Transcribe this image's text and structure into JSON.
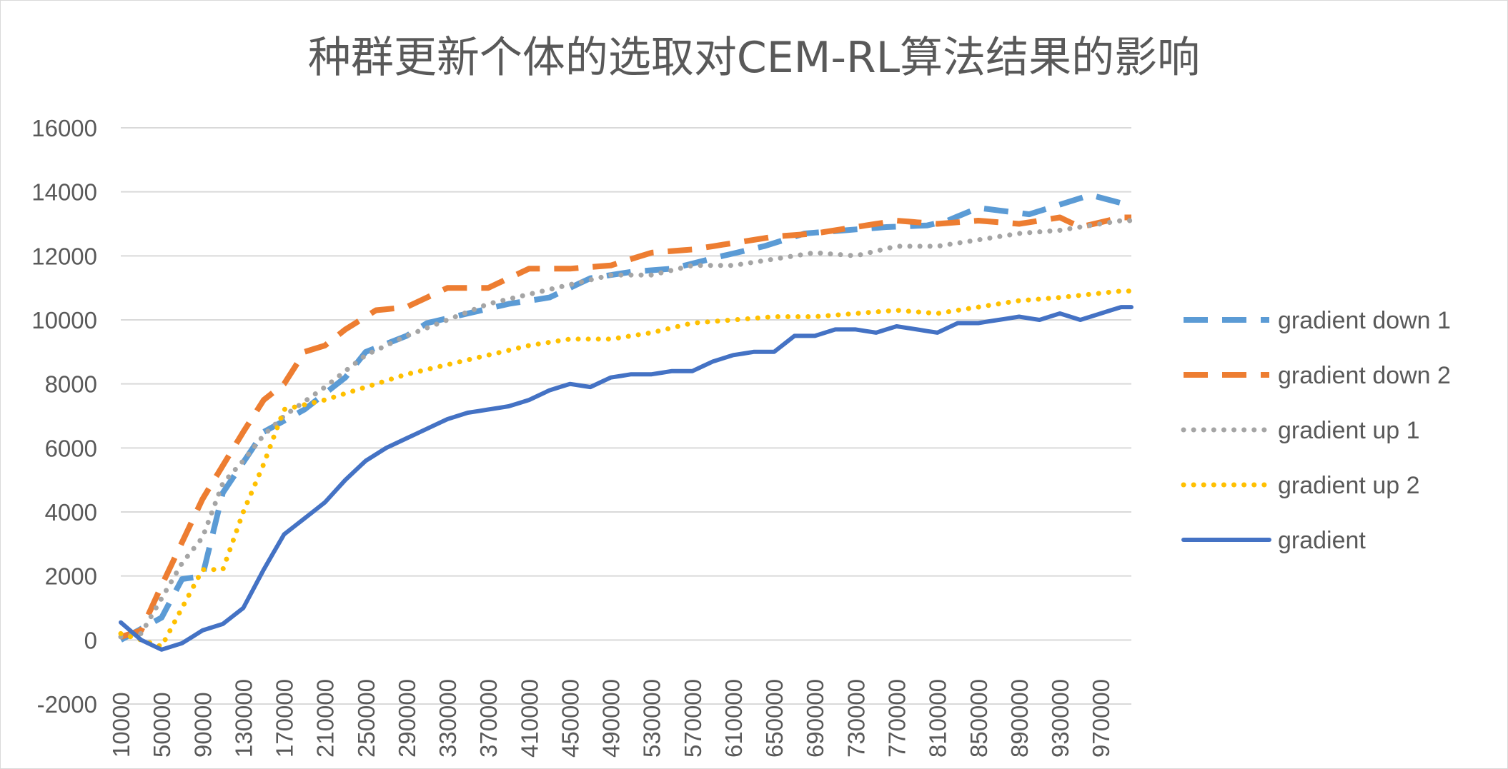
{
  "chart_data": {
    "type": "line",
    "title": "种群更新个体的选取对CEM-RL算法结果的影响",
    "xlabel": "",
    "ylabel": "",
    "ylim": [
      -2000,
      16000
    ],
    "y_ticks": [
      "-2000",
      "0",
      "2000",
      "4000",
      "6000",
      "8000",
      "10000",
      "12000",
      "14000",
      "16000"
    ],
    "x_ticks": [
      "10000",
      "50000",
      "90000",
      "130000",
      "170000",
      "210000",
      "250000",
      "290000",
      "330000",
      "370000",
      "410000",
      "450000",
      "490000",
      "530000",
      "570000",
      "610000",
      "650000",
      "690000",
      "730000",
      "770000",
      "810000",
      "850000",
      "890000",
      "930000",
      "970000"
    ],
    "x_start": 10000,
    "x_step": 10000,
    "grid": true,
    "legend_position": "right",
    "series": [
      {
        "name": "gradient down 1",
        "color": "#5b9bd5",
        "style": "longdash",
        "anchors": [
          [
            10000,
            0
          ],
          [
            50000,
            700
          ],
          [
            70000,
            1900
          ],
          [
            90000,
            2000
          ],
          [
            110000,
            4600
          ],
          [
            150000,
            6500
          ],
          [
            190000,
            7200
          ],
          [
            230000,
            8200
          ],
          [
            250000,
            9000
          ],
          [
            290000,
            9500
          ],
          [
            310000,
            9900
          ],
          [
            350000,
            10200
          ],
          [
            390000,
            10500
          ],
          [
            430000,
            10700
          ],
          [
            470000,
            11300
          ],
          [
            510000,
            11500
          ],
          [
            550000,
            11600
          ],
          [
            600000,
            12000
          ],
          [
            640000,
            12300
          ],
          [
            680000,
            12700
          ],
          [
            720000,
            12800
          ],
          [
            760000,
            12900
          ],
          [
            800000,
            12950
          ],
          [
            820000,
            13100
          ],
          [
            850000,
            13500
          ],
          [
            900000,
            13300
          ],
          [
            940000,
            13700
          ],
          [
            960000,
            13900
          ],
          [
            990000,
            13650
          ]
        ]
      },
      {
        "name": "gradient down 2",
        "color": "#ed7d31",
        "style": "longdash",
        "anchors": [
          [
            10000,
            100
          ],
          [
            30000,
            300
          ],
          [
            50000,
            1700
          ],
          [
            90000,
            4400
          ],
          [
            130000,
            6500
          ],
          [
            150000,
            7500
          ],
          [
            170000,
            8000
          ],
          [
            190000,
            9000
          ],
          [
            210000,
            9200
          ],
          [
            230000,
            9700
          ],
          [
            260000,
            10300
          ],
          [
            290000,
            10400
          ],
          [
            330000,
            11000
          ],
          [
            370000,
            11000
          ],
          [
            410000,
            11600
          ],
          [
            450000,
            11600
          ],
          [
            490000,
            11700
          ],
          [
            530000,
            12100
          ],
          [
            570000,
            12200
          ],
          [
            610000,
            12400
          ],
          [
            650000,
            12600
          ],
          [
            690000,
            12700
          ],
          [
            730000,
            12900
          ],
          [
            770000,
            13100
          ],
          [
            810000,
            13000
          ],
          [
            850000,
            13100
          ],
          [
            890000,
            13000
          ],
          [
            930000,
            13200
          ],
          [
            950000,
            12900
          ],
          [
            990000,
            13200
          ]
        ]
      },
      {
        "name": "gradient up 1",
        "color": "#a5a5a5",
        "style": "dotted",
        "anchors": [
          [
            10000,
            100
          ],
          [
            30000,
            200
          ],
          [
            50000,
            1300
          ],
          [
            70000,
            2400
          ],
          [
            90000,
            3200
          ],
          [
            110000,
            4900
          ],
          [
            130000,
            5600
          ],
          [
            150000,
            6400
          ],
          [
            170000,
            7000
          ],
          [
            210000,
            7900
          ],
          [
            250000,
            8900
          ],
          [
            290000,
            9500
          ],
          [
            330000,
            10000
          ],
          [
            370000,
            10500
          ],
          [
            410000,
            10800
          ],
          [
            450000,
            11100
          ],
          [
            490000,
            11400
          ],
          [
            530000,
            11400
          ],
          [
            570000,
            11700
          ],
          [
            610000,
            11700
          ],
          [
            650000,
            11900
          ],
          [
            690000,
            12100
          ],
          [
            730000,
            12000
          ],
          [
            770000,
            12300
          ],
          [
            810000,
            12300
          ],
          [
            850000,
            12500
          ],
          [
            890000,
            12700
          ],
          [
            930000,
            12800
          ],
          [
            990000,
            13100
          ]
        ]
      },
      {
        "name": "gradient up 2",
        "color": "#ffc000",
        "style": "dotted",
        "anchors": [
          [
            10000,
            200
          ],
          [
            30000,
            0
          ],
          [
            50000,
            -200
          ],
          [
            70000,
            1000
          ],
          [
            90000,
            2200
          ],
          [
            110000,
            2200
          ],
          [
            130000,
            4000
          ],
          [
            150000,
            5500
          ],
          [
            170000,
            7200
          ],
          [
            210000,
            7500
          ],
          [
            250000,
            7900
          ],
          [
            290000,
            8300
          ],
          [
            330000,
            8600
          ],
          [
            370000,
            8900
          ],
          [
            410000,
            9200
          ],
          [
            450000,
            9400
          ],
          [
            490000,
            9400
          ],
          [
            530000,
            9600
          ],
          [
            570000,
            9900
          ],
          [
            610000,
            10000
          ],
          [
            650000,
            10100
          ],
          [
            690000,
            10100
          ],
          [
            730000,
            10200
          ],
          [
            770000,
            10300
          ],
          [
            810000,
            10200
          ],
          [
            850000,
            10400
          ],
          [
            890000,
            10600
          ],
          [
            930000,
            10700
          ],
          [
            990000,
            10900
          ]
        ]
      },
      {
        "name": "gradient",
        "color": "#4472c4",
        "style": "solid",
        "anchors": [
          [
            10000,
            550
          ],
          [
            30000,
            0
          ],
          [
            50000,
            -300
          ],
          [
            70000,
            -100
          ],
          [
            90000,
            300
          ],
          [
            110000,
            500
          ],
          [
            130000,
            1000
          ],
          [
            150000,
            2200
          ],
          [
            170000,
            3300
          ],
          [
            190000,
            3800
          ],
          [
            210000,
            4300
          ],
          [
            230000,
            5000
          ],
          [
            250000,
            5600
          ],
          [
            270000,
            6000
          ],
          [
            290000,
            6300
          ],
          [
            310000,
            6600
          ],
          [
            330000,
            6900
          ],
          [
            350000,
            7100
          ],
          [
            370000,
            7200
          ],
          [
            390000,
            7300
          ],
          [
            410000,
            7500
          ],
          [
            430000,
            7800
          ],
          [
            450000,
            8000
          ],
          [
            470000,
            7900
          ],
          [
            490000,
            8200
          ],
          [
            510000,
            8300
          ],
          [
            530000,
            8300
          ],
          [
            550000,
            8400
          ],
          [
            570000,
            8400
          ],
          [
            590000,
            8700
          ],
          [
            610000,
            8900
          ],
          [
            630000,
            9000
          ],
          [
            650000,
            9000
          ],
          [
            670000,
            9500
          ],
          [
            690000,
            9500
          ],
          [
            710000,
            9700
          ],
          [
            730000,
            9700
          ],
          [
            750000,
            9600
          ],
          [
            770000,
            9800
          ],
          [
            790000,
            9700
          ],
          [
            810000,
            9600
          ],
          [
            830000,
            9900
          ],
          [
            850000,
            9900
          ],
          [
            870000,
            10000
          ],
          [
            890000,
            10100
          ],
          [
            910000,
            10000
          ],
          [
            930000,
            10200
          ],
          [
            950000,
            10000
          ],
          [
            970000,
            10200
          ],
          [
            990000,
            10400
          ]
        ]
      }
    ]
  }
}
